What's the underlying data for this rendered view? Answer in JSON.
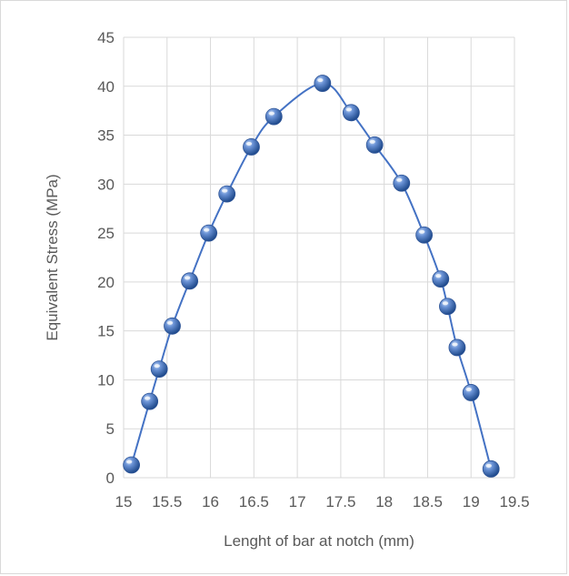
{
  "chart_data": {
    "type": "scatter",
    "title": "",
    "xlabel": "Lenght of bar at notch (mm)",
    "ylabel": "Equivalent Stress (MPa)",
    "xlim": [
      15,
      19.5
    ],
    "ylim": [
      0,
      45
    ],
    "x_ticks": [
      "15",
      "15.5",
      "16",
      "16.5",
      "17",
      "17.5",
      "18",
      "18.5",
      "19",
      "19.5"
    ],
    "y_ticks": [
      "0",
      "5",
      "10",
      "15",
      "20",
      "25",
      "30",
      "35",
      "40",
      "45"
    ],
    "grid": true,
    "legend": "none",
    "series": [
      {
        "smooth_line": true,
        "color": "#4472c4",
        "marker": "sphere",
        "points": [
          {
            "x": 15.09,
            "y": 1.3
          },
          {
            "x": 15.3,
            "y": 7.8
          },
          {
            "x": 15.41,
            "y": 11.1
          },
          {
            "x": 15.56,
            "y": 15.5
          },
          {
            "x": 15.76,
            "y": 20.1
          },
          {
            "x": 15.98,
            "y": 25.0
          },
          {
            "x": 16.19,
            "y": 29.0
          },
          {
            "x": 16.47,
            "y": 33.8
          },
          {
            "x": 16.73,
            "y": 36.9
          },
          {
            "x": 17.29,
            "y": 40.3
          },
          {
            "x": 17.62,
            "y": 37.3
          },
          {
            "x": 17.89,
            "y": 34.0
          },
          {
            "x": 18.2,
            "y": 30.1
          },
          {
            "x": 18.46,
            "y": 24.8
          },
          {
            "x": 18.65,
            "y": 20.3
          },
          {
            "x": 18.73,
            "y": 17.5
          },
          {
            "x": 18.84,
            "y": 13.3
          },
          {
            "x": 19.0,
            "y": 8.7
          },
          {
            "x": 19.23,
            "y": 0.9
          }
        ]
      }
    ]
  }
}
